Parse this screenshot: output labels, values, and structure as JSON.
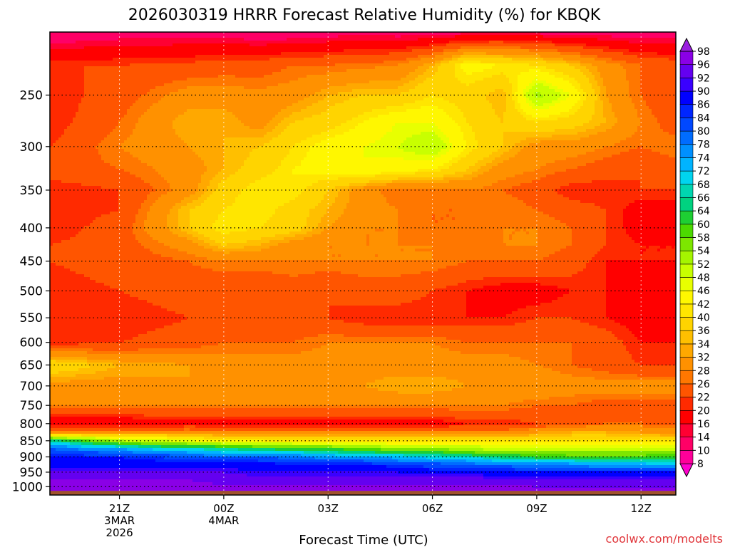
{
  "chart_data": {
    "type": "heatmap",
    "title": "2026030319 HRRR Forecast Relative Humidity (%) for KBQK",
    "xlabel": "Forecast Time (UTC)",
    "ylabel": "",
    "credit": "coolwx.com/modelts",
    "x_unit": "hours since 2026-03-03 19Z",
    "xlim": [
      0,
      18
    ],
    "y_scale": "log",
    "ylim": [
      1030,
      200
    ],
    "x_ticks": [
      {
        "x": 2,
        "lines": [
          "21Z",
          "3MAR",
          "2026"
        ]
      },
      {
        "x": 5,
        "lines": [
          "00Z",
          "4MAR"
        ]
      },
      {
        "x": 8,
        "lines": [
          "03Z"
        ]
      },
      {
        "x": 11,
        "lines": [
          "06Z"
        ]
      },
      {
        "x": 14,
        "lines": [
          "09Z"
        ]
      },
      {
        "x": 17,
        "lines": [
          "12Z"
        ]
      }
    ],
    "y_ticks": [
      250,
      300,
      350,
      400,
      450,
      500,
      550,
      600,
      650,
      700,
      750,
      800,
      850,
      900,
      950,
      1000
    ],
    "colorbar": {
      "levels": [
        8,
        10,
        14,
        16,
        20,
        22,
        26,
        28,
        32,
        34,
        36,
        40,
        42,
        46,
        48,
        52,
        54,
        58,
        60,
        64,
        66,
        68,
        72,
        74,
        78,
        80,
        84,
        86,
        90,
        92,
        96,
        98
      ],
      "colors": [
        "#ff00cc",
        "#ff0099",
        "#ff0066",
        "#ff0033",
        "#ff0000",
        "#ff2a00",
        "#ff5500",
        "#ff7700",
        "#ff9100",
        "#ffa800",
        "#ffbf00",
        "#ffd400",
        "#ffe600",
        "#fff700",
        "#e8ff00",
        "#c8ff00",
        "#a5f500",
        "#7de600",
        "#4cd900",
        "#1ecf33",
        "#00d280",
        "#00d6b0",
        "#00d4ef",
        "#00b4ff",
        "#0090ff",
        "#006cff",
        "#0048ff",
        "#0026ff",
        "#0000ff",
        "#3a00ff",
        "#6400f0",
        "#8a00e6",
        "#9a20e0"
      ]
    },
    "rh_grid": {
      "x": [
        0,
        2,
        4,
        5,
        6,
        7,
        8,
        9,
        10,
        11,
        12,
        13,
        14,
        15,
        16,
        17,
        18
      ],
      "p": [
        200,
        225,
        250,
        275,
        300,
        325,
        350,
        375,
        400,
        425,
        450,
        500,
        550,
        600,
        650,
        700,
        750,
        800,
        825,
        850,
        875,
        900,
        925,
        950,
        975,
        1000,
        1030
      ],
      "values": [
        [
          10,
          12,
          12,
          12,
          11,
          11,
          12,
          13,
          12,
          12,
          13,
          14,
          13,
          12,
          12,
          11,
          12
        ],
        [
          22,
          22,
          23,
          24,
          24,
          26,
          26,
          27,
          28,
          34,
          44,
          42,
          40,
          36,
          30,
          26,
          24
        ],
        [
          20,
          24,
          30,
          30,
          29,
          30,
          34,
          36,
          36,
          40,
          38,
          34,
          54,
          46,
          32,
          26,
          22
        ],
        [
          20,
          26,
          34,
          34,
          30,
          36,
          38,
          42,
          46,
          46,
          40,
          36,
          40,
          38,
          34,
          28,
          24
        ],
        [
          22,
          28,
          32,
          34,
          36,
          40,
          44,
          46,
          48,
          52,
          42,
          36,
          30,
          30,
          28,
          26,
          28
        ],
        [
          24,
          26,
          30,
          34,
          38,
          42,
          44,
          46,
          44,
          42,
          36,
          30,
          28,
          26,
          24,
          22,
          24
        ],
        [
          20,
          22,
          30,
          38,
          42,
          42,
          36,
          30,
          26,
          26,
          28,
          26,
          24,
          20,
          20,
          22,
          22
        ],
        [
          20,
          22,
          36,
          40,
          42,
          38,
          34,
          30,
          28,
          26,
          26,
          28,
          26,
          24,
          22,
          18,
          18
        ],
        [
          20,
          24,
          36,
          42,
          40,
          38,
          32,
          28,
          28,
          26,
          26,
          28,
          28,
          26,
          22,
          18,
          18
        ],
        [
          22,
          24,
          30,
          36,
          34,
          30,
          28,
          28,
          28,
          28,
          28,
          28,
          28,
          26,
          22,
          20,
          20
        ],
        [
          22,
          24,
          26,
          28,
          28,
          28,
          28,
          28,
          28,
          28,
          26,
          26,
          26,
          24,
          20,
          20,
          20
        ],
        [
          20,
          22,
          24,
          22,
          22,
          24,
          22,
          24,
          24,
          22,
          20,
          18,
          18,
          20,
          20,
          18,
          18
        ],
        [
          20,
          20,
          22,
          22,
          24,
          24,
          22,
          20,
          20,
          20,
          20,
          20,
          22,
          22,
          20,
          18,
          18
        ],
        [
          20,
          22,
          24,
          26,
          26,
          26,
          28,
          28,
          28,
          28,
          26,
          26,
          26,
          26,
          24,
          20,
          20
        ],
        [
          40,
          34,
          32,
          30,
          30,
          30,
          30,
          30,
          30,
          30,
          30,
          30,
          28,
          26,
          24,
          22,
          22
        ],
        [
          30,
          30,
          32,
          32,
          32,
          32,
          32,
          32,
          34,
          34,
          32,
          32,
          32,
          30,
          30,
          30,
          30
        ],
        [
          28,
          28,
          28,
          28,
          28,
          28,
          28,
          28,
          28,
          28,
          28,
          28,
          26,
          26,
          24,
          24,
          24
        ],
        [
          16,
          16,
          18,
          18,
          18,
          18,
          18,
          18,
          18,
          18,
          20,
          20,
          22,
          24,
          26,
          26,
          24
        ],
        [
          30,
          30,
          30,
          28,
          28,
          28,
          28,
          28,
          28,
          28,
          28,
          28,
          32,
          34,
          34,
          32,
          30
        ],
        [
          66,
          52,
          46,
          44,
          42,
          40,
          40,
          40,
          40,
          40,
          40,
          40,
          40,
          40,
          40,
          40,
          40
        ],
        [
          80,
          74,
          68,
          66,
          64,
          62,
          60,
          58,
          56,
          54,
          52,
          50,
          50,
          50,
          50,
          50,
          50
        ],
        [
          86,
          86,
          82,
          80,
          80,
          78,
          76,
          74,
          72,
          70,
          68,
          64,
          62,
          60,
          60,
          60,
          62
        ],
        [
          88,
          88,
          88,
          88,
          88,
          86,
          86,
          86,
          84,
          82,
          80,
          78,
          76,
          76,
          74,
          74,
          72
        ],
        [
          92,
          92,
          92,
          92,
          90,
          90,
          90,
          90,
          90,
          88,
          88,
          88,
          88,
          88,
          86,
          86,
          86
        ],
        [
          96,
          96,
          96,
          94,
          94,
          94,
          94,
          94,
          94,
          94,
          94,
          92,
          92,
          92,
          92,
          92,
          92
        ],
        [
          97,
          97,
          97,
          97,
          97,
          97,
          97,
          97,
          97,
          97,
          97,
          97,
          96,
          96,
          96,
          96,
          96
        ],
        [
          97,
          97,
          97,
          97,
          97,
          97,
          97,
          97,
          97,
          97,
          97,
          97,
          97,
          97,
          97,
          97,
          97
        ]
      ]
    },
    "ground_color": "#a0522d",
    "grid": true
  }
}
